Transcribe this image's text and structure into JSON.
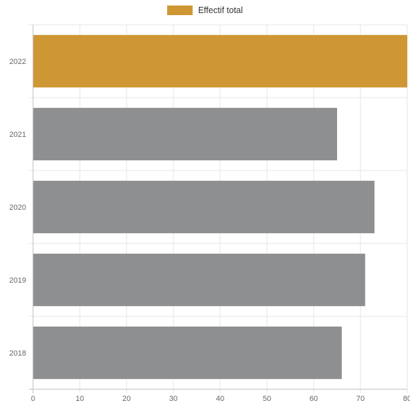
{
  "chart_data": {
    "type": "bar",
    "orientation": "horizontal",
    "categories": [
      "2022",
      "2021",
      "2020",
      "2019",
      "2018"
    ],
    "series": [
      {
        "name": "Effectif total",
        "values": [
          80,
          65,
          73,
          71,
          66
        ]
      }
    ],
    "bar_colors": [
      "#cf9734",
      "#8e8f90",
      "#8e8f90",
      "#8e8f90",
      "#8e8f90"
    ],
    "x_ticks": [
      "0",
      "10",
      "20",
      "30",
      "40",
      "50",
      "60",
      "70",
      "80"
    ],
    "xlim": [
      0,
      80
    ],
    "grid": true,
    "legend_position": "top"
  },
  "legend": {
    "label": "Effectif total",
    "color": "#cf9734"
  }
}
